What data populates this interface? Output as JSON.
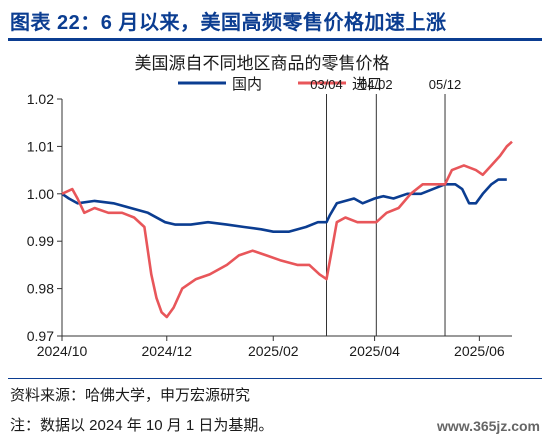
{
  "figure": {
    "title": "图表 22：6 月以来，美国高频零售价格加速上涨",
    "source": "资料来源：哈佛大学，申万宏源研究",
    "note": "注：数据以 2024 年 10 月 1 日为基期。",
    "watermark": "www.365jz.com"
  },
  "chart_data": {
    "type": "line",
    "title": "美国源自不同地区商品的零售价格",
    "xlabel": "",
    "ylabel": "",
    "xlim": [
      "2024-10-01",
      "2025-06-20"
    ],
    "ylim": [
      0.97,
      1.02
    ],
    "y_ticks": [
      0.97,
      0.98,
      0.99,
      1.0,
      1.01,
      1.02
    ],
    "y_tick_labels": [
      "0.97",
      "0.98",
      "0.99",
      "1.00",
      "1.01",
      "1.02"
    ],
    "x_ticks": [
      "2024-10-01",
      "2024-12-01",
      "2025-02-01",
      "2025-04-01",
      "2025-06-01"
    ],
    "x_tick_labels": [
      "2024/10",
      "2024/12",
      "2025/02",
      "2025/04",
      "2025/06"
    ],
    "grid": false,
    "legend_position": "top-center",
    "vlines": [
      {
        "date": "2025-03-04",
        "label": "03/04"
      },
      {
        "date": "2025-04-02",
        "label": "04/02"
      },
      {
        "date": "2025-05-12",
        "label": "05/12"
      }
    ],
    "series": [
      {
        "name": "国内",
        "color": "#0b3d91",
        "points": [
          [
            "2024-10-01",
            1.0
          ],
          [
            "2024-10-05",
            0.999
          ],
          [
            "2024-10-10",
            0.998
          ],
          [
            "2024-10-20",
            0.9985
          ],
          [
            "2024-10-31",
            0.998
          ],
          [
            "2024-11-10",
            0.997
          ],
          [
            "2024-11-20",
            0.996
          ],
          [
            "2024-11-30",
            0.994
          ],
          [
            "2024-12-06",
            0.9935
          ],
          [
            "2024-12-15",
            0.9935
          ],
          [
            "2024-12-25",
            0.994
          ],
          [
            "2025-01-05",
            0.9935
          ],
          [
            "2025-01-15",
            0.993
          ],
          [
            "2025-01-25",
            0.9925
          ],
          [
            "2025-02-01",
            0.992
          ],
          [
            "2025-02-10",
            0.992
          ],
          [
            "2025-02-20",
            0.993
          ],
          [
            "2025-02-27",
            0.994
          ],
          [
            "2025-03-04",
            0.994
          ],
          [
            "2025-03-06",
            0.9955
          ],
          [
            "2025-03-10",
            0.998
          ],
          [
            "2025-03-15",
            0.9985
          ],
          [
            "2025-03-20",
            0.999
          ],
          [
            "2025-03-25",
            0.998
          ],
          [
            "2025-04-01",
            0.999
          ],
          [
            "2025-04-06",
            0.9995
          ],
          [
            "2025-04-12",
            0.999
          ],
          [
            "2025-04-20",
            1.0
          ],
          [
            "2025-04-28",
            1.0
          ],
          [
            "2025-05-05",
            1.001
          ],
          [
            "2025-05-12",
            1.002
          ],
          [
            "2025-05-18",
            1.002
          ],
          [
            "2025-05-22",
            1.001
          ],
          [
            "2025-05-26",
            0.998
          ],
          [
            "2025-05-30",
            0.998
          ],
          [
            "2025-06-03",
            1.0
          ],
          [
            "2025-06-08",
            1.002
          ],
          [
            "2025-06-12",
            1.003
          ],
          [
            "2025-06-17",
            1.003
          ]
        ]
      },
      {
        "name": "进口",
        "color": "#e8565a",
        "points": [
          [
            "2024-10-01",
            1.0
          ],
          [
            "2024-10-04",
            1.0005
          ],
          [
            "2024-10-07",
            1.001
          ],
          [
            "2024-10-10",
            0.999
          ],
          [
            "2024-10-14",
            0.996
          ],
          [
            "2024-10-20",
            0.997
          ],
          [
            "2024-10-28",
            0.996
          ],
          [
            "2024-11-05",
            0.996
          ],
          [
            "2024-11-12",
            0.995
          ],
          [
            "2024-11-18",
            0.993
          ],
          [
            "2024-11-22",
            0.983
          ],
          [
            "2024-11-25",
            0.978
          ],
          [
            "2024-11-28",
            0.975
          ],
          [
            "2024-12-01",
            0.974
          ],
          [
            "2024-12-05",
            0.976
          ],
          [
            "2024-12-10",
            0.98
          ],
          [
            "2024-12-18",
            0.982
          ],
          [
            "2024-12-26",
            0.983
          ],
          [
            "2025-01-05",
            0.985
          ],
          [
            "2025-01-12",
            0.987
          ],
          [
            "2025-01-20",
            0.988
          ],
          [
            "2025-01-28",
            0.987
          ],
          [
            "2025-02-05",
            0.986
          ],
          [
            "2025-02-15",
            0.985
          ],
          [
            "2025-02-22",
            0.985
          ],
          [
            "2025-02-28",
            0.983
          ],
          [
            "2025-03-04",
            0.982
          ],
          [
            "2025-03-07",
            0.988
          ],
          [
            "2025-03-10",
            0.994
          ],
          [
            "2025-03-15",
            0.995
          ],
          [
            "2025-03-22",
            0.994
          ],
          [
            "2025-03-29",
            0.994
          ],
          [
            "2025-04-02",
            0.994
          ],
          [
            "2025-04-08",
            0.996
          ],
          [
            "2025-04-15",
            0.997
          ],
          [
            "2025-04-22",
            1.0
          ],
          [
            "2025-04-29",
            1.002
          ],
          [
            "2025-05-06",
            1.002
          ],
          [
            "2025-05-12",
            1.002
          ],
          [
            "2025-05-16",
            1.005
          ],
          [
            "2025-05-23",
            1.006
          ],
          [
            "2025-05-30",
            1.005
          ],
          [
            "2025-06-03",
            1.004
          ],
          [
            "2025-06-08",
            1.006
          ],
          [
            "2025-06-13",
            1.008
          ],
          [
            "2025-06-17",
            1.01
          ],
          [
            "2025-06-20",
            1.011
          ]
        ]
      }
    ]
  }
}
